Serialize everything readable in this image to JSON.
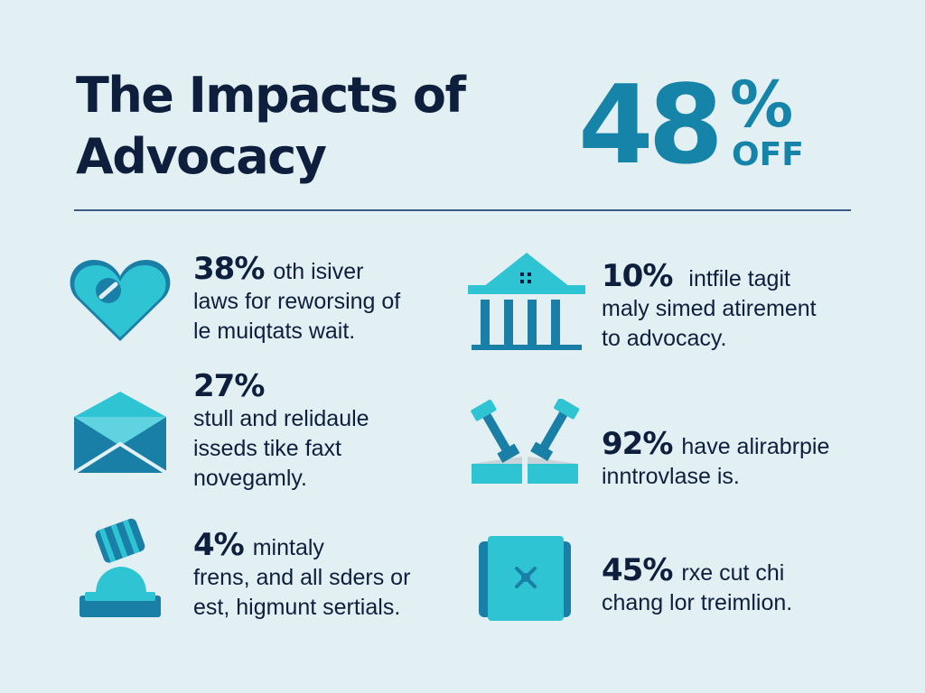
{
  "header": {
    "title_line1": "The Impacts of",
    "title_line2": "Advocacy",
    "hero_number": "48",
    "hero_percent": "%",
    "hero_suffix": "OFF"
  },
  "colors": {
    "background": "#e2eff3",
    "accent": "#1683a8",
    "accent_light": "#2ec4d4",
    "text": "#0e1e3d",
    "divider": "#3c5a86"
  },
  "stats": [
    {
      "icon": "heart-icon",
      "percent": "38%",
      "line1": "oth isiver",
      "line2": "laws for reworsing of",
      "line3": "le muiqtats wait."
    },
    {
      "icon": "envelope-icon",
      "percent": "27%",
      "line1": "",
      "line2": "stull and relidaule",
      "line3": "isseds tike faxt",
      "line4": "novegamly."
    },
    {
      "icon": "gavel-icon",
      "percent": "4%",
      "line1": "mintaly",
      "line2": "frens, and all sders or",
      "line3": "est, higmunt sertials."
    },
    {
      "icon": "building-icon",
      "percent": "10%",
      "line1": "intfile tagit",
      "line2": "maly simed atirement",
      "line3": "to advocacy."
    },
    {
      "icon": "scales-icon",
      "percent": "92%",
      "line1": "have alirabrpie",
      "line2": "inntrovlase is."
    },
    {
      "icon": "box-icon",
      "percent": "45%",
      "line1": "rxe cut chi",
      "line2": "chang lor treimlion."
    }
  ]
}
